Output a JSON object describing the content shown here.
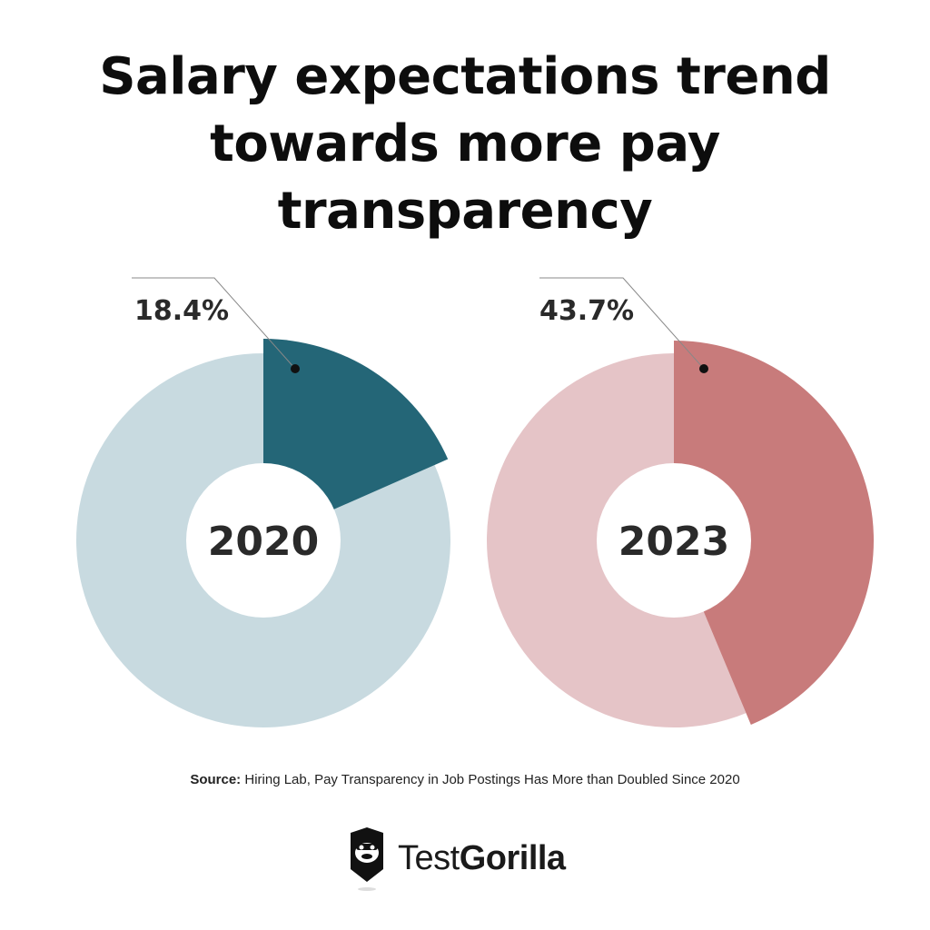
{
  "title": "Salary expectations trend towards more pay transparency",
  "chart_data": [
    {
      "type": "pie",
      "center_label": "2020",
      "value_label": "18.4%",
      "values": [
        18.4,
        81.6
      ],
      "colors": [
        "#246677",
        "#c8dae0"
      ]
    },
    {
      "type": "pie",
      "center_label": "2023",
      "value_label": "43.7%",
      "values": [
        43.7,
        56.3
      ],
      "colors": [
        "#c87b7b",
        "#e5c4c7"
      ]
    }
  ],
  "source": {
    "label": "Source:",
    "text": "Hiring Lab, Pay Transparency in Job Postings Has More than Doubled Since 2020"
  },
  "brand": {
    "name_light": "Test",
    "name_bold": "Gorilla",
    "icon": "gorilla-logo-icon"
  }
}
